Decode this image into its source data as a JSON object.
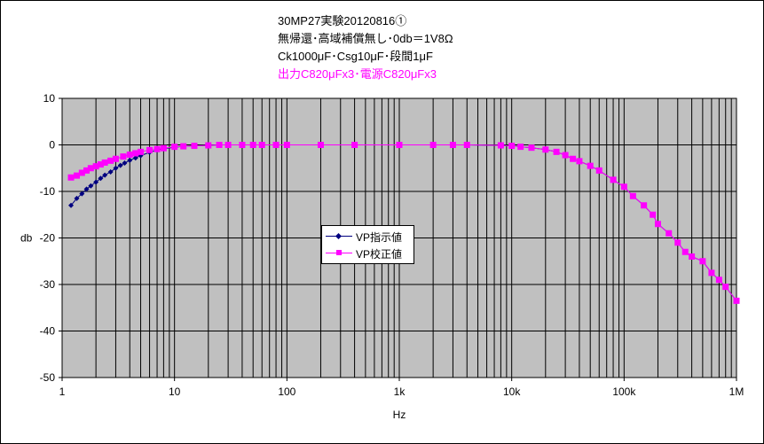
{
  "title_lines": [
    "30MP27実験20120816①",
    "無帰還･高域補償無し･0db＝1V8Ω",
    "Ck1000μF･Csg10μF･段間1μF",
    "出力C820μFx3･電源C820μFx3"
  ],
  "colors": {
    "plot_bg": "#c0c0c0",
    "grid": "#000000",
    "series1": "#000080",
    "series2": "#ff00ff",
    "title_highlight": "#ff00ff"
  },
  "chart_data": {
    "type": "line",
    "x_scale": "log",
    "xlim": [
      1,
      1000000
    ],
    "ylim": [
      -50,
      10
    ],
    "xlabel": "Hz",
    "ylabel": "db",
    "x_tick_labels": [
      "1",
      "10",
      "100",
      "1k",
      "10k",
      "100k",
      "1M"
    ],
    "y_tick_labels": [
      "10",
      "0",
      "-10",
      "-20",
      "-30",
      "-40",
      "-50"
    ],
    "y_ticks": [
      10,
      0,
      -10,
      -20,
      -30,
      -40,
      -50
    ],
    "x_ticks": [
      1,
      10,
      100,
      1000,
      10000,
      100000,
      1000000
    ],
    "grid": true,
    "legend_position": "center",
    "series": [
      {
        "name": "VP指示値",
        "marker": "diamond",
        "points": [
          [
            1.2,
            -13
          ],
          [
            1.35,
            -11.5
          ],
          [
            1.5,
            -10.5
          ],
          [
            1.65,
            -9.5
          ],
          [
            1.8,
            -8.8
          ],
          [
            2.0,
            -8.0
          ],
          [
            2.2,
            -7.2
          ],
          [
            2.4,
            -6.5
          ],
          [
            2.7,
            -5.8
          ],
          [
            3.0,
            -5.0
          ],
          [
            3.3,
            -4.4
          ],
          [
            3.6,
            -3.9
          ],
          [
            4.0,
            -3.3
          ],
          [
            4.5,
            -2.8
          ],
          [
            5.0,
            -2.3
          ],
          [
            6.0,
            -1.6
          ],
          [
            7.0,
            -1.1
          ],
          [
            8.0,
            -0.8
          ],
          [
            10,
            -0.5
          ],
          [
            12,
            -0.3
          ],
          [
            15,
            -0.2
          ],
          [
            20,
            -0.1
          ],
          [
            25,
            0
          ],
          [
            30,
            0
          ],
          [
            40,
            0
          ],
          [
            50,
            0
          ],
          [
            60,
            0
          ],
          [
            80,
            0
          ],
          [
            100,
            0
          ],
          [
            200,
            0
          ],
          [
            400,
            0
          ],
          [
            1000,
            0
          ],
          [
            2000,
            0
          ],
          [
            4000,
            0
          ],
          [
            8000,
            -0.1
          ],
          [
            10000,
            -0.2
          ],
          [
            12000,
            -0.4
          ],
          [
            15000,
            -0.6
          ],
          [
            20000,
            -1.0
          ],
          [
            25000,
            -1.5
          ],
          [
            30000,
            -2.2
          ],
          [
            35000,
            -3.0
          ],
          [
            40000,
            -3.5
          ],
          [
            50000,
            -4.5
          ],
          [
            60000,
            -5.5
          ],
          [
            80000,
            -7.5
          ],
          [
            100000,
            -9.0
          ],
          [
            120000,
            -11.0
          ],
          [
            150000,
            -13.0
          ],
          [
            180000,
            -15.0
          ],
          [
            200000,
            -17.0
          ],
          [
            250000,
            -19.0
          ],
          [
            300000,
            -21.0
          ],
          [
            350000,
            -23.0
          ],
          [
            400000,
            -24.0
          ],
          [
            500000,
            -25.0
          ],
          [
            600000,
            -27.5
          ],
          [
            700000,
            -29.0
          ],
          [
            800000,
            -30.5
          ],
          [
            1000000,
            -33.5
          ]
        ]
      },
      {
        "name": "VP校正値",
        "marker": "square",
        "points": [
          [
            1.2,
            -7.0
          ],
          [
            1.35,
            -6.6
          ],
          [
            1.5,
            -6.0
          ],
          [
            1.65,
            -5.5
          ],
          [
            1.8,
            -5.0
          ],
          [
            2.0,
            -4.6
          ],
          [
            2.2,
            -4.2
          ],
          [
            2.4,
            -3.8
          ],
          [
            2.7,
            -3.4
          ],
          [
            3.0,
            -3.0
          ],
          [
            3.5,
            -2.5
          ],
          [
            4.0,
            -2.1
          ],
          [
            4.5,
            -1.8
          ],
          [
            5.0,
            -1.5
          ],
          [
            6.0,
            -1.1
          ],
          [
            7.0,
            -0.9
          ],
          [
            8.0,
            -0.7
          ],
          [
            10,
            -0.4
          ],
          [
            12,
            -0.3
          ],
          [
            15,
            -0.2
          ],
          [
            20,
            -0.1
          ],
          [
            25,
            0
          ],
          [
            30,
            0
          ],
          [
            40,
            0
          ],
          [
            50,
            0
          ],
          [
            60,
            0
          ],
          [
            80,
            0
          ],
          [
            100,
            0
          ],
          [
            200,
            0
          ],
          [
            400,
            0
          ],
          [
            1000,
            0
          ],
          [
            2000,
            0
          ],
          [
            3000,
            0
          ],
          [
            4000,
            0
          ],
          [
            8000,
            -0.1
          ],
          [
            10000,
            -0.2
          ],
          [
            12000,
            -0.4
          ],
          [
            15000,
            -0.6
          ],
          [
            20000,
            -1.0
          ],
          [
            25000,
            -1.5
          ],
          [
            30000,
            -2.2
          ],
          [
            35000,
            -3.0
          ],
          [
            40000,
            -3.5
          ],
          [
            50000,
            -4.5
          ],
          [
            60000,
            -5.5
          ],
          [
            80000,
            -7.5
          ],
          [
            100000,
            -9.0
          ],
          [
            120000,
            -11.0
          ],
          [
            150000,
            -13.0
          ],
          [
            180000,
            -15.0
          ],
          [
            200000,
            -17.0
          ],
          [
            250000,
            -19.0
          ],
          [
            300000,
            -21.0
          ],
          [
            350000,
            -23.0
          ],
          [
            400000,
            -24.0
          ],
          [
            500000,
            -25.0
          ],
          [
            600000,
            -27.5
          ],
          [
            700000,
            -29.0
          ],
          [
            800000,
            -30.5
          ],
          [
            1000000,
            -33.5
          ]
        ]
      }
    ]
  }
}
